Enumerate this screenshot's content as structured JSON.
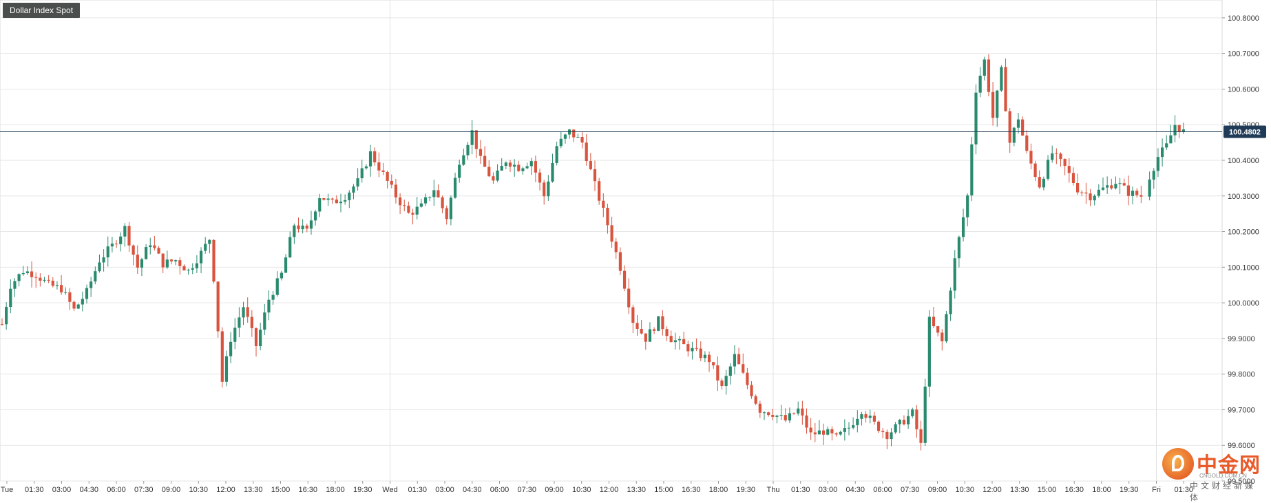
{
  "title": "Dollar Index Spot",
  "current_price_label": "100.4802",
  "colors": {
    "up": "#2a8a6e",
    "down": "#d9543f",
    "price_line": "#1f3b57",
    "grid": "#e6e6e6",
    "badge": "#4a4f4d"
  },
  "watermark": {
    "brand": "中金网",
    "domain": "CNGOLD.COM.CN",
    "tagline": "中文财经新媒体"
  },
  "chart_data": {
    "type": "candlestick",
    "ylim": [
      99.5,
      100.85
    ],
    "yticks": [
      "100.8000",
      "100.7000",
      "100.6000",
      "100.5000",
      "100.4000",
      "100.3000",
      "100.2000",
      "100.1000",
      "100.0000",
      "99.9000",
      "99.8000",
      "99.7000",
      "99.6000",
      "99.5000"
    ],
    "xticks": [
      "Tue",
      "01:30",
      "03:00",
      "04:30",
      "06:00",
      "07:30",
      "09:00",
      "10:30",
      "12:00",
      "13:30",
      "15:00",
      "16:30",
      "18:00",
      "19:30",
      "Wed",
      "01:30",
      "03:00",
      "04:30",
      "06:00",
      "07:30",
      "09:00",
      "10:30",
      "12:00",
      "13:30",
      "15:00",
      "16:30",
      "18:00",
      "19:30",
      "Thu",
      "01:30",
      "03:00",
      "04:30",
      "06:00",
      "07:30",
      "09:00",
      "10:30",
      "12:00",
      "13:30",
      "15:00",
      "16:30",
      "18:00",
      "19:30",
      "Fri",
      "01:30"
    ],
    "current_price": 100.4802,
    "day_separators": [
      "Wed",
      "Thu",
      "Fri"
    ],
    "grid": true,
    "keypoints": [
      [
        0,
        99.94
      ],
      [
        2,
        100.05
      ],
      [
        5,
        100.09
      ],
      [
        8,
        100.08
      ],
      [
        11,
        100.05
      ],
      [
        14,
        100.04
      ],
      [
        17,
        99.98
      ],
      [
        20,
        100.03
      ],
      [
        23,
        100.12
      ],
      [
        26,
        100.16
      ],
      [
        29,
        100.21
      ],
      [
        32,
        100.1
      ],
      [
        35,
        100.17
      ],
      [
        38,
        100.11
      ],
      [
        41,
        100.12
      ],
      [
        44,
        100.09
      ],
      [
        47,
        100.14
      ],
      [
        49,
        100.18
      ],
      [
        50,
        100.07
      ],
      [
        52,
        99.78
      ],
      [
        54,
        99.9
      ],
      [
        57,
        99.99
      ],
      [
        60,
        99.88
      ],
      [
        63,
        100.01
      ],
      [
        66,
        100.08
      ],
      [
        69,
        100.22
      ],
      [
        72,
        100.2
      ],
      [
        75,
        100.3
      ],
      [
        78,
        100.28
      ],
      [
        81,
        100.3
      ],
      [
        84,
        100.34
      ],
      [
        87,
        100.42
      ],
      [
        90,
        100.36
      ],
      [
        93,
        100.3
      ],
      [
        96,
        100.25
      ],
      [
        99,
        100.27
      ],
      [
        102,
        100.32
      ],
      [
        105,
        100.24
      ],
      [
        108,
        100.4
      ],
      [
        111,
        100.48
      ],
      [
        113,
        100.4
      ],
      [
        116,
        100.34
      ],
      [
        119,
        100.4
      ],
      [
        122,
        100.38
      ],
      [
        125,
        100.4
      ],
      [
        128,
        100.3
      ],
      [
        131,
        100.44
      ],
      [
        134,
        100.48
      ],
      [
        137,
        100.45
      ],
      [
        140,
        100.33
      ],
      [
        143,
        100.22
      ],
      [
        146,
        100.1
      ],
      [
        149,
        99.95
      ],
      [
        152,
        99.9
      ],
      [
        155,
        99.95
      ],
      [
        158,
        99.9
      ],
      [
        161,
        99.88
      ],
      [
        164,
        99.86
      ],
      [
        167,
        99.84
      ],
      [
        170,
        99.76
      ],
      [
        173,
        99.85
      ],
      [
        176,
        99.77
      ],
      [
        179,
        99.7
      ],
      [
        182,
        99.69
      ],
      [
        185,
        99.67
      ],
      [
        188,
        99.7
      ],
      [
        191,
        99.63
      ],
      [
        194,
        99.64
      ],
      [
        197,
        99.62
      ],
      [
        200,
        99.65
      ],
      [
        203,
        99.7
      ],
      [
        206,
        99.66
      ],
      [
        209,
        99.63
      ],
      [
        212,
        99.66
      ],
      [
        215,
        99.69
      ],
      [
        217,
        99.6
      ],
      [
        219,
        99.95
      ],
      [
        222,
        99.89
      ],
      [
        225,
        100.12
      ],
      [
        228,
        100.3
      ],
      [
        230,
        100.6
      ],
      [
        232,
        100.68
      ],
      [
        234,
        100.52
      ],
      [
        236,
        100.65
      ],
      [
        238,
        100.45
      ],
      [
        240,
        100.52
      ],
      [
        242,
        100.42
      ],
      [
        245,
        100.33
      ],
      [
        248,
        100.42
      ],
      [
        251,
        100.38
      ],
      [
        254,
        100.32
      ],
      [
        257,
        100.3
      ],
      [
        260,
        100.32
      ],
      [
        263,
        100.34
      ],
      [
        266,
        100.31
      ],
      [
        269,
        100.3
      ],
      [
        273,
        100.41
      ],
      [
        275,
        100.44
      ],
      [
        277,
        100.5
      ],
      [
        279,
        100.48
      ]
    ],
    "session_gap_after": 269
  }
}
